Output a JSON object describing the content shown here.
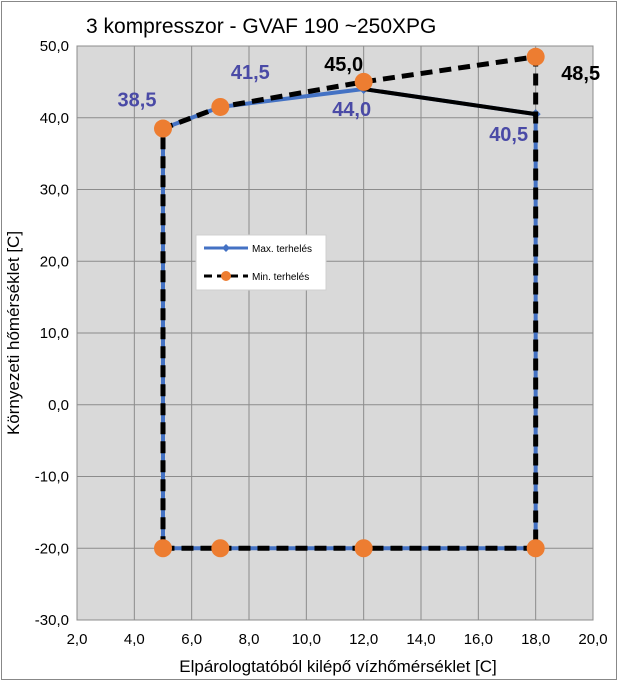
{
  "chart_data": {
    "type": "line",
    "title": "3 kompresszor - GVAF 190 ~250XPG",
    "xlabel": "Elpárologtatóból kilépő vízhőmérséklet [C]",
    "ylabel": "Környezeti hőmérséklet [C]",
    "xlim": [
      2,
      20
    ],
    "ylim": [
      -30,
      50
    ],
    "x_ticks": [
      "2,0",
      "4,0",
      "6,0",
      "8,0",
      "10,0",
      "12,0",
      "14,0",
      "16,0",
      "18,0",
      "20,0"
    ],
    "y_ticks": [
      "50,0",
      "40,0",
      "30,0",
      "20,0",
      "10,0",
      "0,0",
      "-10,0",
      "-20,0",
      "-30,0"
    ],
    "grid": true,
    "legend_position": "center-left",
    "series": [
      {
        "name": "Max. terhelés",
        "color": "#4472c4",
        "style": "solid",
        "marker": "diamond",
        "points": [
          [
            5,
            -20
          ],
          [
            5,
            38.5
          ],
          [
            7,
            41.5
          ],
          [
            12,
            44.0
          ],
          [
            18,
            40.5
          ],
          [
            18,
            -20
          ],
          [
            12,
            -20
          ],
          [
            7,
            -20
          ],
          [
            5,
            -20
          ]
        ]
      },
      {
        "name": "Min. terhelés",
        "color": "#000000",
        "style": "dashed",
        "marker": "circle",
        "marker_color": "#ed7d31",
        "points": [
          [
            5,
            -20
          ],
          [
            5,
            38.5
          ],
          [
            7,
            41.5
          ],
          [
            12,
            45.0
          ],
          [
            18,
            48.5
          ],
          [
            18,
            -20
          ],
          [
            12,
            -20
          ],
          [
            7,
            -20
          ],
          [
            5,
            -20
          ]
        ]
      }
    ],
    "data_labels": [
      {
        "text": "38,5",
        "color": "#4a4aa6"
      },
      {
        "text": "41,5",
        "color": "#4a4aa6"
      },
      {
        "text": "44,0",
        "color": "#4a4aa6"
      },
      {
        "text": "40,5",
        "color": "#4a4aa6"
      },
      {
        "text": "45,0",
        "color": "#000000"
      },
      {
        "text": "48,5",
        "color": "#000000"
      }
    ]
  }
}
